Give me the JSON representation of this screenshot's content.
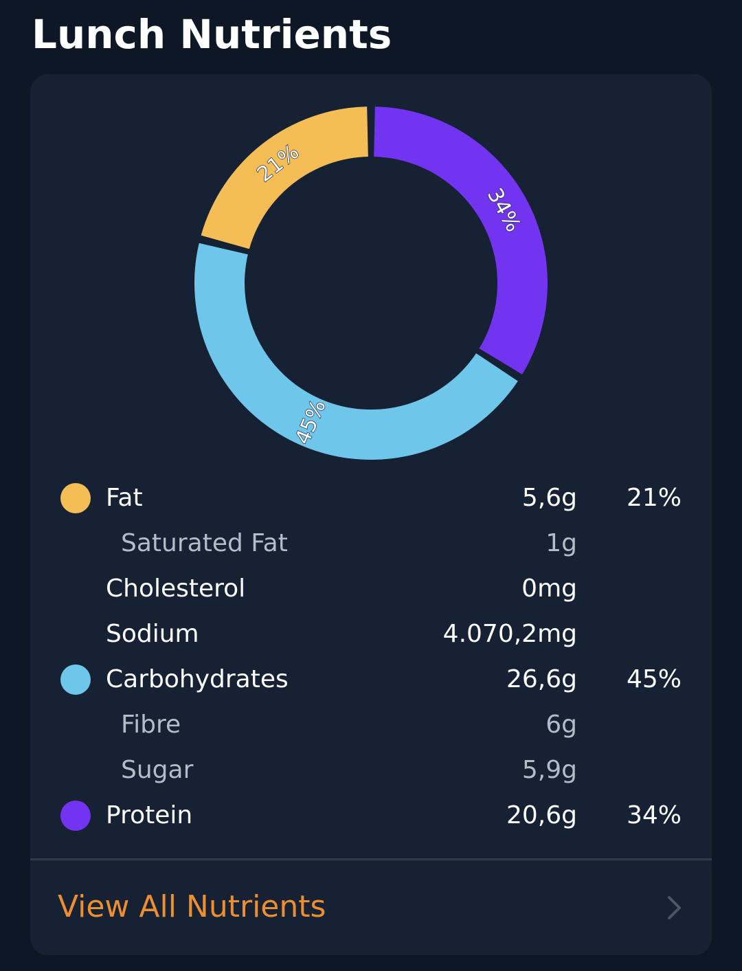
{
  "header": {
    "title": "Lunch Nutrients"
  },
  "colors": {
    "background": "#0d1726",
    "card": "#162133",
    "fat": "#f5bd55",
    "carbohydrates": "#6ec6ea",
    "protein": "#7234f0",
    "accent": "#ee8f2f"
  },
  "chart_data": {
    "type": "pie",
    "style": "donut",
    "start": "top",
    "direction": "clockwise",
    "slices": [
      {
        "name": "Protein",
        "value": 34,
        "label": "34%",
        "color": "#7234f0"
      },
      {
        "name": "Carbohydrates",
        "value": 45,
        "label": "45%",
        "color": "#6ec6ea"
      },
      {
        "name": "Fat",
        "value": 21,
        "label": "21%",
        "color": "#f5bd55"
      }
    ]
  },
  "nutrients": [
    {
      "label": "Fat",
      "amount": "5,6g",
      "percent": "21%",
      "dot": "#f5bd55",
      "sub": false
    },
    {
      "label": "Saturated Fat",
      "amount": "1g",
      "percent": "",
      "dot": "",
      "sub": true
    },
    {
      "label": "Cholesterol",
      "amount": "0mg",
      "percent": "",
      "dot": "",
      "sub": false
    },
    {
      "label": "Sodium",
      "amount": "4.070,2mg",
      "percent": "",
      "dot": "",
      "sub": false
    },
    {
      "label": "Carbohydrates",
      "amount": "26,6g",
      "percent": "45%",
      "dot": "#6ec6ea",
      "sub": false
    },
    {
      "label": "Fibre",
      "amount": "6g",
      "percent": "",
      "dot": "",
      "sub": true
    },
    {
      "label": "Sugar",
      "amount": "5,9g",
      "percent": "",
      "dot": "",
      "sub": true
    },
    {
      "label": "Protein",
      "amount": "20,6g",
      "percent": "34%",
      "dot": "#7234f0",
      "sub": false
    }
  ],
  "footer": {
    "view_all_label": "View All Nutrients",
    "chevron_icon": "chevron-right-icon"
  }
}
